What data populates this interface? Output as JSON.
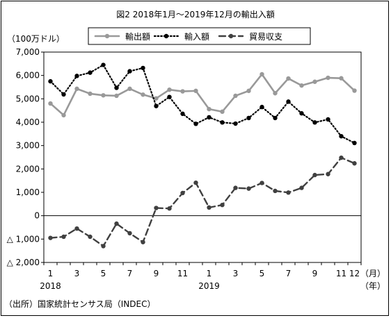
{
  "chart_data": {
    "type": "line",
    "title": "図2 2018年1月～2019年12月の輸出入額",
    "unit_label": "（100万ドル）",
    "source": "（出所）国家統計センサス局（INDEC）",
    "x_unit_month": "（月）",
    "x_unit_year": "（年）",
    "categories": [
      "2018-01",
      "2018-02",
      "2018-03",
      "2018-04",
      "2018-05",
      "2018-06",
      "2018-07",
      "2018-08",
      "2018-09",
      "2018-10",
      "2018-11",
      "2018-12",
      "2019-01",
      "2019-02",
      "2019-03",
      "2019-04",
      "2019-05",
      "2019-06",
      "2019-07",
      "2019-08",
      "2019-09",
      "2019-10",
      "2019-11",
      "2019-12"
    ],
    "x_tick_labels": [
      "1",
      "3",
      "5",
      "7",
      "9",
      "11",
      "1",
      "3",
      "5",
      "7",
      "9",
      "11",
      "12"
    ],
    "x_tick_months": [
      "2018-01",
      "2018-03",
      "2018-05",
      "2018-07",
      "2018-09",
      "2018-11",
      "2019-01",
      "2019-03",
      "2019-05",
      "2019-07",
      "2019-09",
      "2019-11",
      "2019-12"
    ],
    "year_labels": [
      {
        "label": "2018",
        "month": "2018-01"
      },
      {
        "label": "2019",
        "month": "2019-01"
      }
    ],
    "y_tick_labels": [
      "7,000",
      "6,000",
      "5,000",
      "4,000",
      "3,000",
      "2,000",
      "1,000",
      "0",
      "△ 1,000",
      "△ 2,000"
    ],
    "y_tick_values": [
      7000,
      6000,
      5000,
      4000,
      3000,
      2000,
      1000,
      0,
      -1000,
      -2000
    ],
    "ylim": [
      -2000,
      7000
    ],
    "grid": false,
    "legend_position": "top",
    "series": [
      {
        "name": "輸出額",
        "style": "solid",
        "color": "#999999",
        "values": [
          4800,
          4300,
          5430,
          5220,
          5150,
          5130,
          5430,
          5180,
          5020,
          5390,
          5320,
          5340,
          4560,
          4450,
          5130,
          5340,
          6050,
          5240,
          5870,
          5570,
          5730,
          5900,
          5880,
          5350
        ]
      },
      {
        "name": "輸入額",
        "style": "dotted",
        "color": "#000000",
        "values": [
          5750,
          5190,
          5980,
          6120,
          6450,
          5470,
          6180,
          6320,
          4690,
          5080,
          4360,
          3930,
          4210,
          3990,
          3940,
          4180,
          4650,
          4180,
          4880,
          4380,
          3990,
          4120,
          3400,
          3110
        ]
      },
      {
        "name": "貿易収支",
        "style": "dashed",
        "color": "#404040",
        "values": [
          -950,
          -900,
          -550,
          -900,
          -1300,
          -340,
          -750,
          -1130,
          330,
          310,
          970,
          1410,
          350,
          460,
          1190,
          1160,
          1400,
          1060,
          990,
          1190,
          1740,
          1780,
          2480,
          2240
        ]
      }
    ]
  }
}
